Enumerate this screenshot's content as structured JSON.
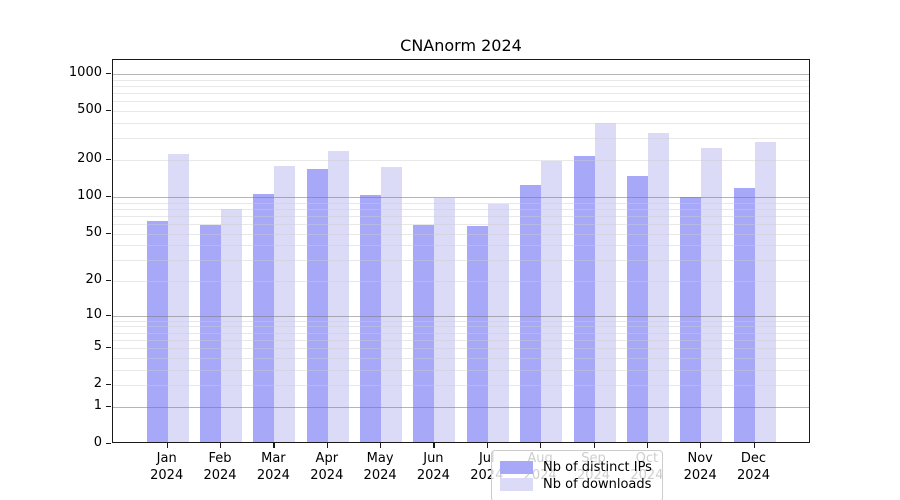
{
  "chart_data": {
    "type": "bar",
    "title": "CNAnorm 2024",
    "year_label": "2024",
    "categories": [
      "Jan",
      "Feb",
      "Mar",
      "Apr",
      "May",
      "Jun",
      "Jul",
      "Aug",
      "Sep",
      "Oct",
      "Nov",
      "Dec"
    ],
    "series": [
      {
        "name": "Nb of distinct IPs",
        "color": "#a8a8f8",
        "values": [
          61,
          57,
          101,
          164,
          100,
          57,
          55,
          120,
          206,
          142,
          96,
          113
        ]
      },
      {
        "name": "Nb of downloads",
        "color": "#dbdbf8",
        "values": [
          215,
          77,
          172,
          230,
          170,
          94,
          85,
          190,
          385,
          320,
          242,
          268
        ]
      }
    ],
    "y_ticks": [
      0,
      1,
      2,
      5,
      10,
      20,
      50,
      100,
      200,
      500,
      1000
    ],
    "y_scale": "log1p",
    "ylim": [
      0,
      1000
    ],
    "xlabel": "",
    "ylabel": "",
    "grid": "major and minor horizontal gridlines",
    "legend_position": "bottom-center inside plot",
    "axis_color": "#1a1a1a"
  }
}
